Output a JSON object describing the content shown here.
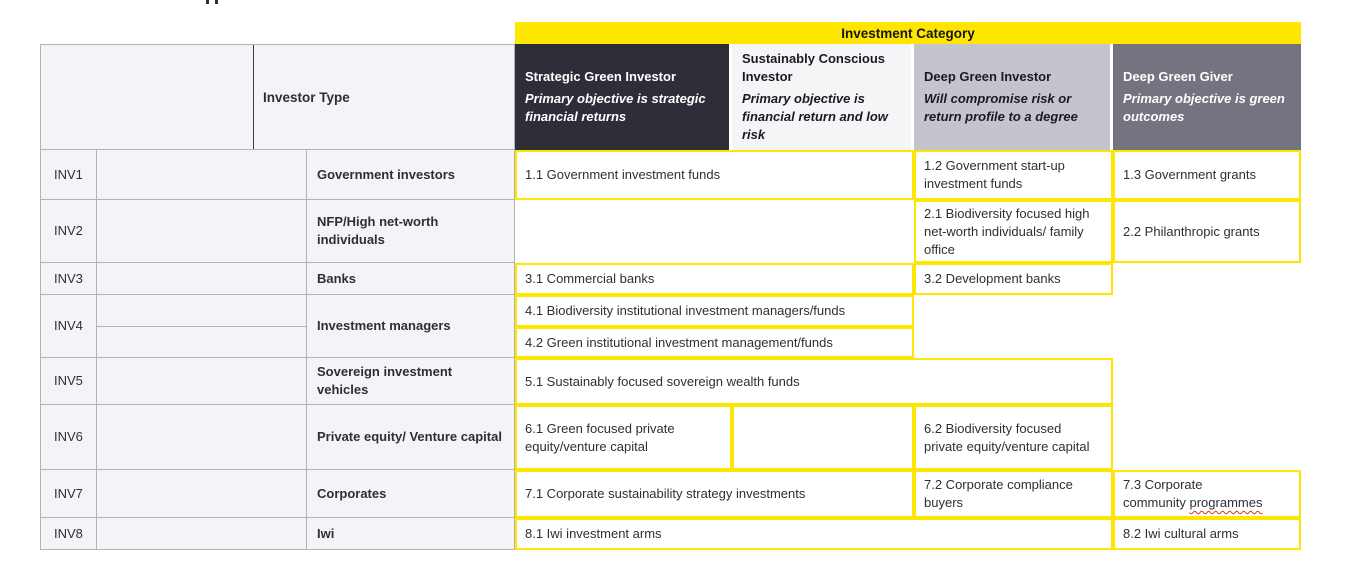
{
  "banner": {
    "label": "Investment Category"
  },
  "left_header": {
    "label": "Investor Type"
  },
  "categories": [
    {
      "name": "Strategic Green Investor",
      "subtitle": "Primary objective is strategic financial returns",
      "bg": "#2e2e38",
      "text_color": "#ffffff"
    },
    {
      "name": "Sustainably Conscious Investor",
      "subtitle": "Primary objective is financial return and low risk",
      "bg": "#f5f5f8",
      "text_color": "#1a1a24"
    },
    {
      "name": "Deep Green Investor",
      "subtitle": "Will compromise risk or return profile to a degree",
      "bg": "#c4c4cd",
      "text_color": "#1a1a24"
    },
    {
      "name": "Deep Green Giver",
      "subtitle": "Primary objective is green outcomes",
      "bg": "#747480",
      "text_color": "#ffffff"
    }
  ],
  "investor_types": [
    {
      "code": "INV1",
      "name": "Government investors"
    },
    {
      "code": "INV2",
      "name": "NFP/High net-worth individuals"
    },
    {
      "code": "INV3",
      "name": "Banks"
    },
    {
      "code": "INV4",
      "name": "Investment managers"
    },
    {
      "code": "INV5",
      "name": "Sovereign investment vehicles"
    },
    {
      "code": "INV6",
      "name": "Private equity/ Venture capital"
    },
    {
      "code": "INV7",
      "name": "Corporates"
    },
    {
      "code": "INV8",
      "name": "Iwi"
    }
  ],
  "cells": {
    "c11": "1.1 Government investment funds",
    "c12": "1.2 Government start-up investment funds",
    "c13": "1.3 Government grants",
    "c21": "2.1 Biodiversity focused high net-worth individuals/ family office",
    "c22": "2.2 Philanthropic grants",
    "c31": "3.1 Commercial banks",
    "c32": "3.2 Development banks",
    "c41": "4.1 Biodiversity institutional investment managers/funds",
    "c42": "4.2 Green institutional investment management/funds",
    "c51": "5.1 Sustainably focused sovereign wealth funds",
    "c61": "6.1 Green focused private equity/venture capital",
    "c62": "6.2 Biodiversity focused private equity/venture capital",
    "c71": "7.1 Corporate sustainability strategy investments",
    "c72": "7.2 Corporate compliance buyers",
    "c73_prefix": "7.3 Corporate community",
    "c73_misspelled": "programmes",
    "c81": "8.1 Iwi investment arms",
    "c82": "8.2 Iwi cultural arms"
  },
  "colors": {
    "accent_yellow": "#ffe600",
    "dark": "#2e2e38",
    "gray_medium": "#747480",
    "gray_light": "#c4c4cd",
    "left_cell_bg": "#f4f4f8",
    "left_border": "#b2b2b8",
    "squiggle_red": "#e0301e",
    "text": "#2e2e38"
  }
}
